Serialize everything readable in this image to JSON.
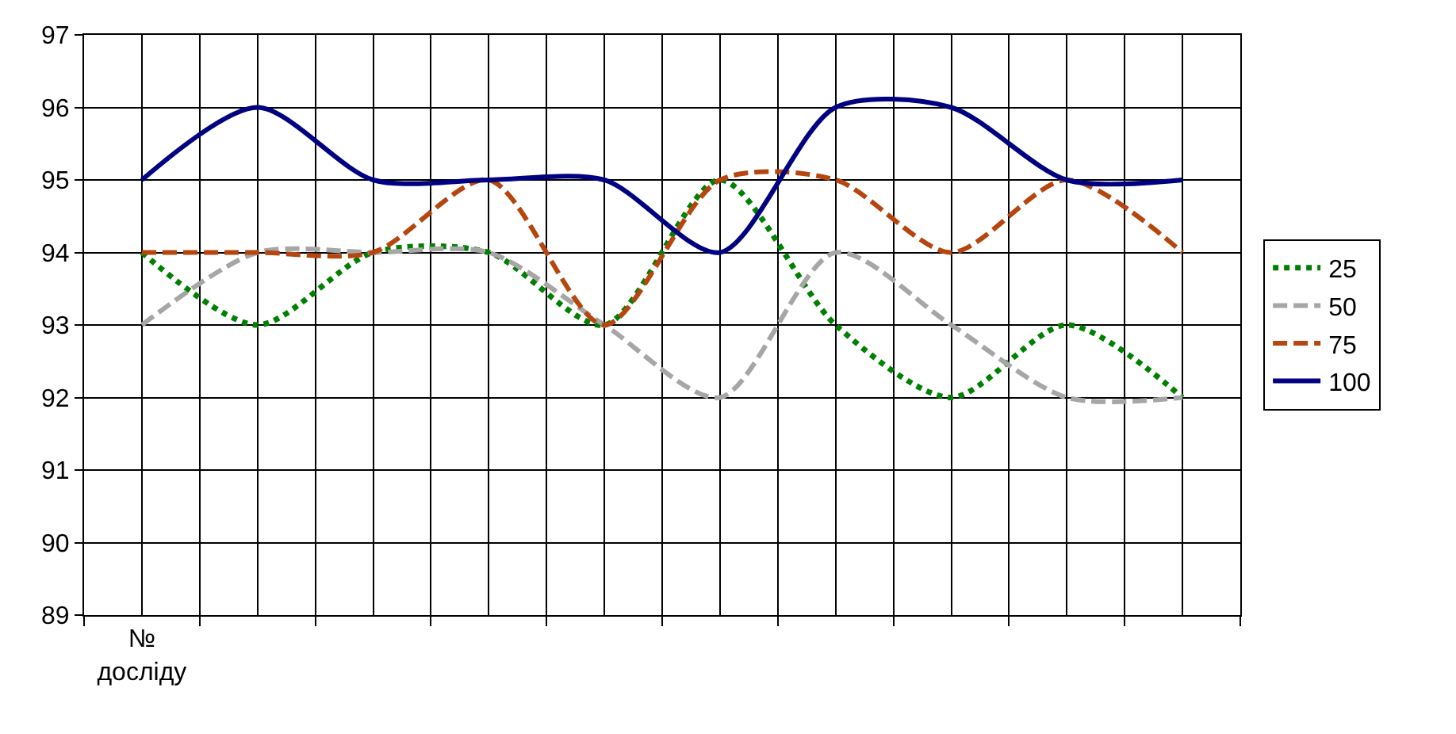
{
  "chart_data": {
    "type": "line",
    "categories": [
      "№ досліду",
      null,
      null,
      null,
      null,
      null,
      null,
      null,
      null,
      null
    ],
    "series": [
      {
        "name": "25",
        "color": "#008000",
        "line_style": "dotted",
        "values": [
          94,
          93,
          94,
          94,
          93,
          95,
          93,
          92,
          93,
          92
        ]
      },
      {
        "name": "50",
        "color": "#a6a6a6",
        "line_style": "dashed",
        "values": [
          93,
          94,
          94,
          94,
          93,
          92,
          94,
          93,
          92,
          92
        ]
      },
      {
        "name": "75",
        "color": "#b5460f",
        "line_style": "dashed",
        "values": [
          94,
          94,
          94,
          95,
          93,
          95,
          95,
          94,
          95,
          94
        ]
      },
      {
        "name": "100",
        "color": "#000080",
        "line_style": "solid",
        "values": [
          95,
          96,
          95,
          95,
          95,
          94,
          96,
          96,
          95,
          95
        ]
      }
    ],
    "ylim": [
      89,
      97
    ],
    "yticks": [
      89,
      90,
      91,
      92,
      93,
      94,
      95,
      96,
      97
    ],
    "grid": true,
    "legend": "right",
    "marker": "none"
  }
}
